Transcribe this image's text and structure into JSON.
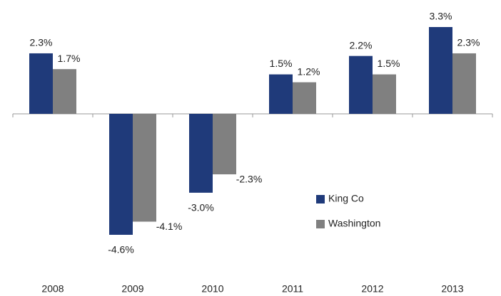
{
  "chart_data": {
    "type": "bar",
    "categories": [
      "2008",
      "2009",
      "2010",
      "2011",
      "2012",
      "2013"
    ],
    "series": [
      {
        "name": "King Co",
        "color": "#1f3a7a",
        "values": [
          2.3,
          -4.6,
          -3.0,
          1.5,
          2.2,
          3.3
        ],
        "value_labels": [
          "2.3%",
          "-4.6%",
          "-3.0%",
          "1.5%",
          "2.2%",
          "3.3%"
        ]
      },
      {
        "name": "Washington",
        "color": "#808080",
        "values": [
          1.7,
          -4.1,
          -2.3,
          1.2,
          1.5,
          2.3
        ],
        "value_labels": [
          "1.7%",
          "-4.1%",
          "-2.3%",
          "1.2%",
          "1.5%",
          "2.3%"
        ]
      }
    ],
    "legend": "lower right"
  }
}
